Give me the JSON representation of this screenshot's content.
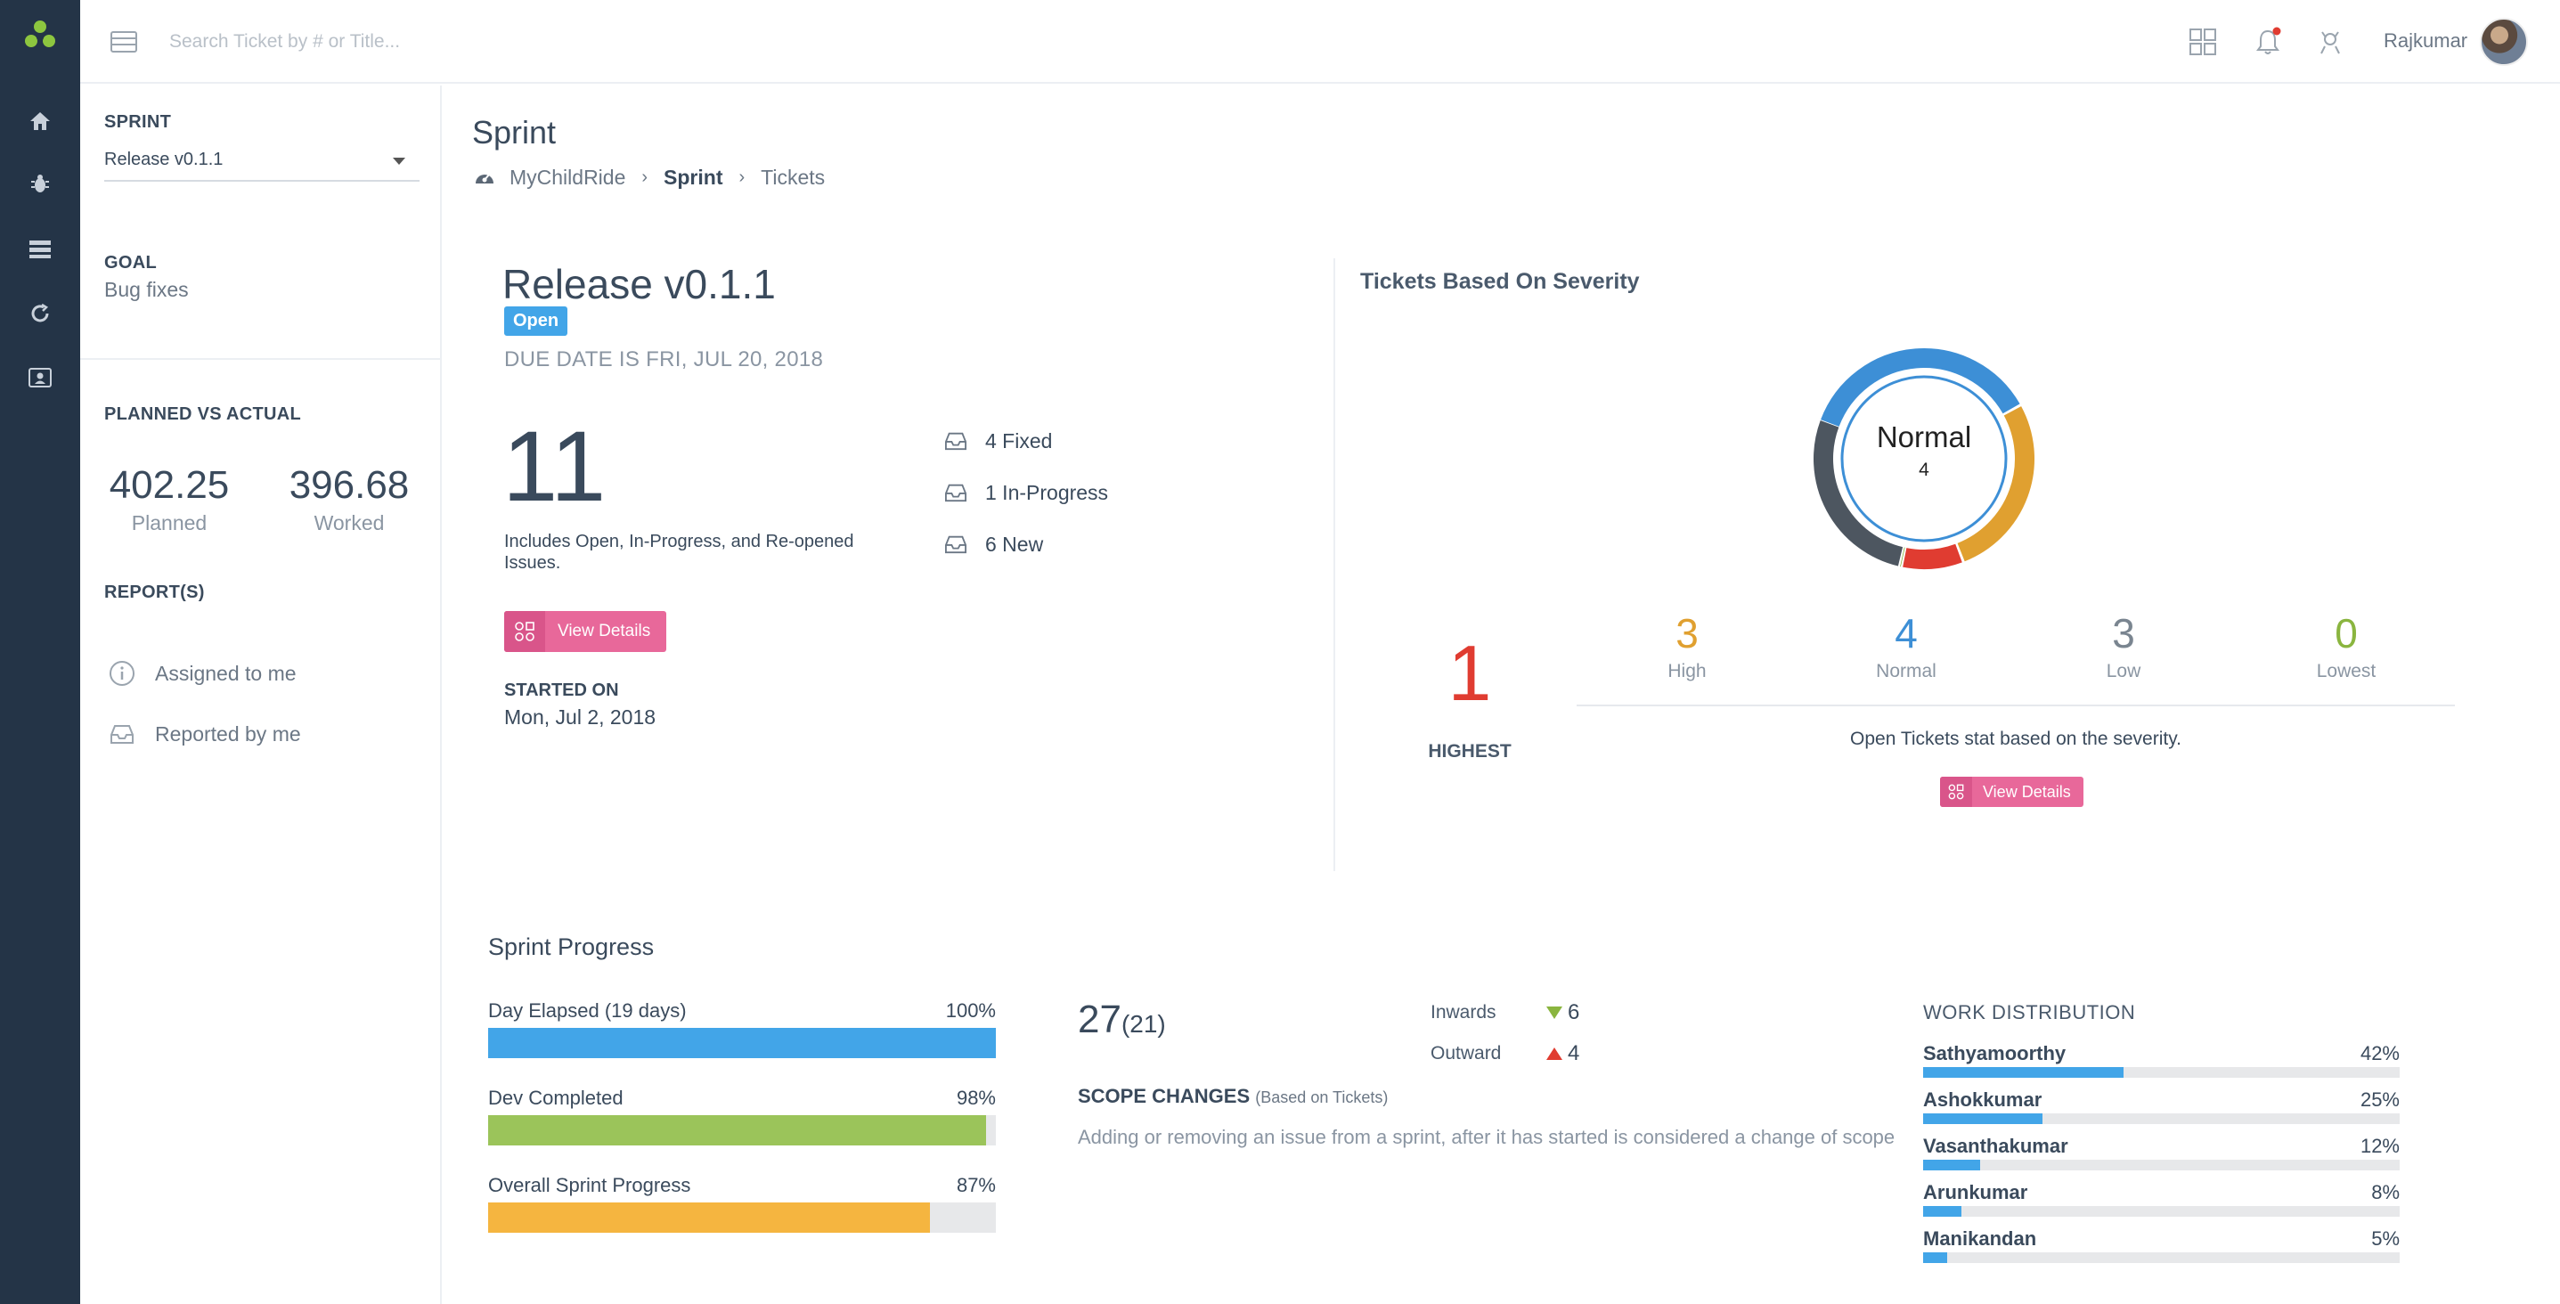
{
  "search": {
    "placeholder": "Search Ticket by # or Title..."
  },
  "header": {
    "user_name": "Rajkumar"
  },
  "colors": {
    "nav_bg": "#243447",
    "accent_blue": "#42a5e8",
    "accent_pink": "#e8689a",
    "green": "#9bc45a",
    "orange": "#f5b540",
    "red": "#e03c31"
  },
  "sidebar": {
    "sprint_label": "SPRINT",
    "sprint_selected": "Release v0.1.1",
    "goal_label": "GOAL",
    "goal_value": "Bug fixes",
    "pva_label": "PLANNED VS ACTUAL",
    "planned_value": "402.25",
    "planned_label": "Planned",
    "worked_value": "396.68",
    "worked_label": "Worked",
    "reports_label": "REPORT(S)",
    "reports": [
      {
        "label": "Assigned to me",
        "icon": "info-circle-icon"
      },
      {
        "label": "Reported by me",
        "icon": "inbox-tray-icon"
      }
    ]
  },
  "page": {
    "title": "Sprint",
    "breadcrumb": [
      "MyChildRide",
      "Sprint",
      "Tickets"
    ]
  },
  "release": {
    "name": "Release v0.1.1",
    "status": "Open",
    "due_date": "DUE DATE IS FRI, JUL 20, 2018",
    "issue_count": "11",
    "issue_desc": "Includes Open, In-Progress, and Re-opened Issues.",
    "stats": [
      {
        "label": "4 Fixed"
      },
      {
        "label": "1 In-Progress"
      },
      {
        "label": "6 New"
      }
    ],
    "view_details": "View Details",
    "started_label": "STARTED ON",
    "started_value": "Mon, Jul 2, 2018"
  },
  "severity": {
    "title": "Tickets Based On Severity",
    "center_label": "Normal",
    "center_value": "4",
    "highest_value": "1",
    "highest_label": "HIGHEST",
    "levels": [
      {
        "value": "3",
        "label": "High",
        "color": "#e0a030"
      },
      {
        "value": "4",
        "label": "Normal",
        "color": "#3d8fd6"
      },
      {
        "value": "3",
        "label": "Low",
        "color": "#7a8590"
      },
      {
        "value": "0",
        "label": "Lowest",
        "color": "#8ab53f"
      }
    ],
    "donut_segments": [
      {
        "name": "Normal",
        "value": 4,
        "color": "#3d8fd6"
      },
      {
        "name": "High",
        "value": 3,
        "color": "#e0a030"
      },
      {
        "name": "Highest",
        "value": 1,
        "color": "#e03c31"
      },
      {
        "name": "Lowest",
        "value": 0,
        "color": "#8ab53f"
      },
      {
        "name": "Low",
        "value": 3,
        "color": "#4d5660"
      }
    ],
    "note": "Open Tickets stat based on the severity.",
    "view_details": "View Details"
  },
  "progress": {
    "title": "Sprint Progress",
    "bars": [
      {
        "label": "Day Elapsed (19 days)",
        "percent_text": "100%",
        "value": 100,
        "color": "#42a5e8"
      },
      {
        "label": "Dev Completed",
        "percent_text": "98%",
        "value": 98,
        "color": "#9bc45a"
      },
      {
        "label": "Overall Sprint Progress",
        "percent_text": "87%",
        "value": 87,
        "color": "#f5b540"
      }
    ]
  },
  "scope": {
    "count": "27",
    "original": "(21)",
    "title": "SCOPE CHANGES",
    "subtitle": "(Based on Tickets)",
    "description": "Adding or removing an issue from a sprint, after it has started is considered a change of scope",
    "inwards_label": "Inwards",
    "inwards_value": "6",
    "outward_label": "Outward",
    "outward_value": "4"
  },
  "work_distribution": {
    "title": "WORK DISTRIBUTION",
    "people": [
      {
        "name": "Sathyamoorthy",
        "percent_text": "42%",
        "value": 42
      },
      {
        "name": "Ashokkumar",
        "percent_text": "25%",
        "value": 25
      },
      {
        "name": "Vasanthakumar",
        "percent_text": "12%",
        "value": 12
      },
      {
        "name": "Arunkumar",
        "percent_text": "8%",
        "value": 8
      },
      {
        "name": "Manikandan",
        "percent_text": "5%",
        "value": 5
      }
    ]
  }
}
